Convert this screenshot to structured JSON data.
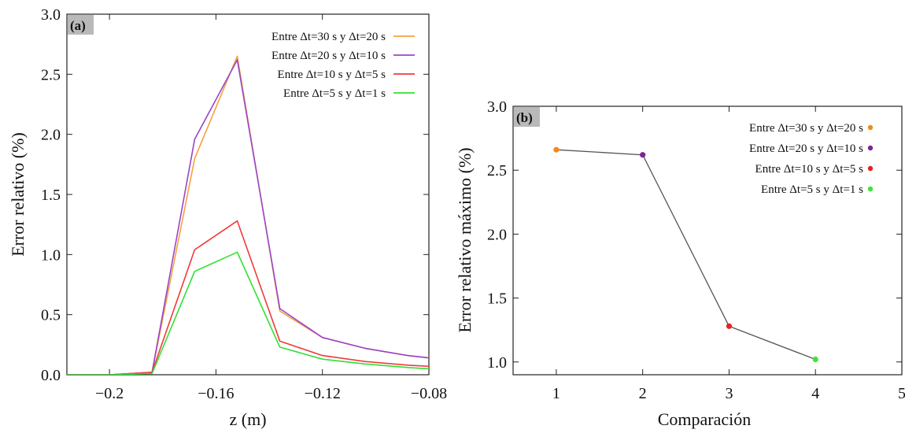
{
  "colors": {
    "series_a": [
      "#f5a042",
      "#9a45c9",
      "#ef3b3b",
      "#32e032"
    ],
    "series_b": [
      "#f08a1c",
      "#7d2596",
      "#e52421",
      "#35e835"
    ],
    "connector_line": "#555555",
    "panel_tag_bg": "#b9b9b9",
    "axes": "#222222"
  },
  "chart_data": [
    {
      "type": "line",
      "panel_label": "(a)",
      "xlabel": "z (m)",
      "ylabel": "Error relativo (%)",
      "xlim": [
        -0.216,
        -0.08
      ],
      "ylim": [
        0,
        3.0
      ],
      "xticks": [
        -0.2,
        -0.16,
        -0.12,
        -0.08
      ],
      "xtick_labels": [
        "−0.2",
        "−0.16",
        "−0.12",
        "−0.08"
      ],
      "yticks": [
        0.0,
        0.5,
        1.0,
        1.5,
        2.0,
        2.5,
        3.0
      ],
      "ytick_labels": [
        "0.0",
        "0.5",
        "1.0",
        "1.5",
        "2.0",
        "2.5",
        "3.0"
      ],
      "legend_position": "top-right",
      "x": [
        -0.216,
        -0.2,
        -0.184,
        -0.168,
        -0.152,
        -0.136,
        -0.12,
        -0.104,
        -0.088,
        -0.08
      ],
      "series": [
        {
          "name": "Entre Δt=30 s y Δt=20 s",
          "values": [
            0.0,
            0.0,
            0.02,
            1.8,
            2.65,
            0.53,
            0.31,
            0.22,
            0.16,
            0.14
          ]
        },
        {
          "name": "Entre Δt=20 s y Δt=10 s",
          "values": [
            0.0,
            0.0,
            0.02,
            1.96,
            2.62,
            0.55,
            0.31,
            0.22,
            0.16,
            0.14
          ]
        },
        {
          "name": "Entre Δt=10 s y Δt=5 s",
          "values": [
            0.0,
            0.0,
            0.02,
            1.04,
            1.28,
            0.28,
            0.16,
            0.11,
            0.08,
            0.07
          ]
        },
        {
          "name": "Entre Δt=5 s y Δt=1 s",
          "values": [
            0.0,
            0.0,
            0.01,
            0.86,
            1.02,
            0.23,
            0.13,
            0.09,
            0.06,
            0.05
          ]
        }
      ]
    },
    {
      "type": "scatter",
      "panel_label": "(b)",
      "xlabel": "Comparación",
      "ylabel": "Error relativo máximo (%)",
      "xlim": [
        0.5,
        5
      ],
      "ylim": [
        0.9,
        3.0
      ],
      "xticks": [
        1,
        2,
        3,
        4,
        5
      ],
      "xtick_labels": [
        "1",
        "2",
        "3",
        "4",
        "5"
      ],
      "yticks": [
        1.0,
        1.5,
        2.0,
        2.5,
        3.0
      ],
      "ytick_labels": [
        "1.0",
        "1.5",
        "2.0",
        "2.5",
        "3.0"
      ],
      "legend_position": "top-right",
      "connected": true,
      "points": [
        {
          "name": "Entre Δt=30 s y Δt=20 s",
          "x": 1,
          "y": 2.66
        },
        {
          "name": "Entre Δt=20 s y Δt=10 s",
          "x": 2,
          "y": 2.62
        },
        {
          "name": "Entre Δt=10 s y Δt=5 s",
          "x": 3,
          "y": 1.28
        },
        {
          "name": "Entre Δt=5 s y Δt=1 s",
          "x": 4,
          "y": 1.02
        }
      ]
    }
  ]
}
